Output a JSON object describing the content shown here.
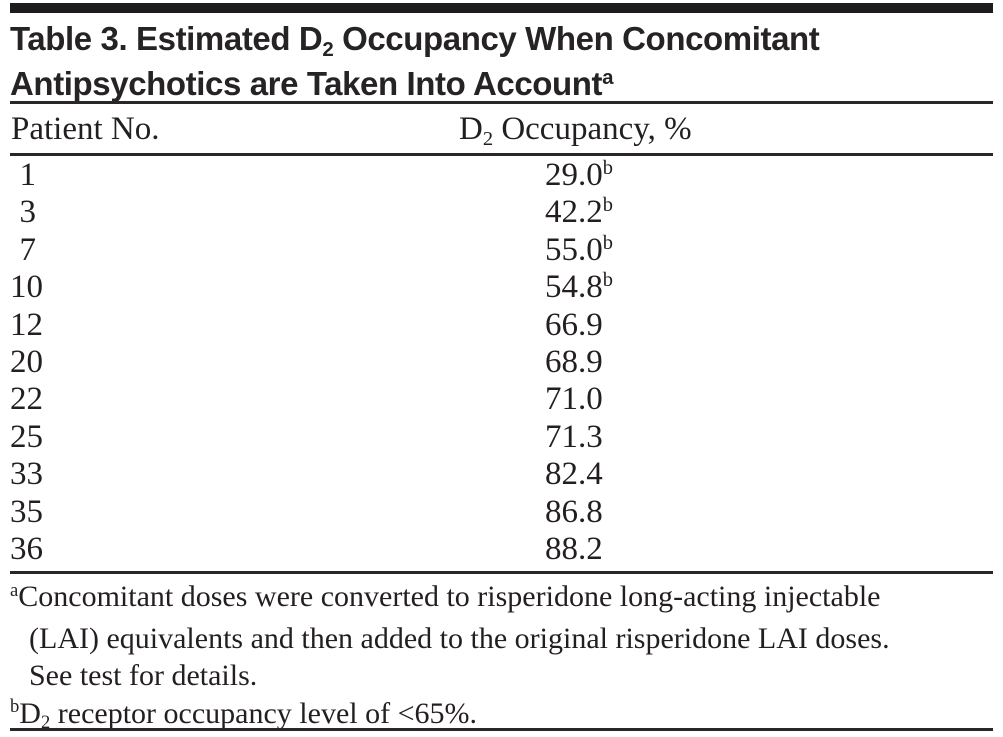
{
  "page": {
    "background": "#ffffff",
    "text_color": "#231f20",
    "bar_color": "#1e1b1c",
    "rule_color": "#2a2627"
  },
  "title": {
    "line1_pre": "Table 3. Estimated D",
    "line1_sub": "2",
    "line1_post": " Occupancy When Concomitant",
    "line2_text": "Antipsychotics are Taken Into Account",
    "line2_sup": "a"
  },
  "table": {
    "header": {
      "col1": "Patient No.",
      "col2_pre": "D",
      "col2_sub": "2",
      "col2_post": " Occupancy, %"
    },
    "rows": [
      {
        "patient": "1",
        "value": "29.0",
        "flag": "b"
      },
      {
        "patient": "3",
        "value": "42.2",
        "flag": "b"
      },
      {
        "patient": "7",
        "value": "55.0",
        "flag": "b"
      },
      {
        "patient": "10",
        "value": "54.8",
        "flag": "b"
      },
      {
        "patient": "12",
        "value": "66.9",
        "flag": ""
      },
      {
        "patient": "20",
        "value": "68.9",
        "flag": ""
      },
      {
        "patient": "22",
        "value": "71.0",
        "flag": ""
      },
      {
        "patient": "25",
        "value": "71.3",
        "flag": ""
      },
      {
        "patient": "33",
        "value": "82.4",
        "flag": ""
      },
      {
        "patient": "35",
        "value": "86.8",
        "flag": ""
      },
      {
        "patient": "36",
        "value": "88.2",
        "flag": ""
      }
    ]
  },
  "footnotes": {
    "a": {
      "marker": "a",
      "lines": [
        "Concomitant doses were converted to risperidone long-acting injectable",
        "(LAI) equivalents and then added to the original risperidone LAI doses.",
        "See test for details."
      ]
    },
    "b": {
      "marker": "b",
      "pre": "D",
      "sub": "2",
      "post": " receptor occupancy level of <65%."
    }
  }
}
